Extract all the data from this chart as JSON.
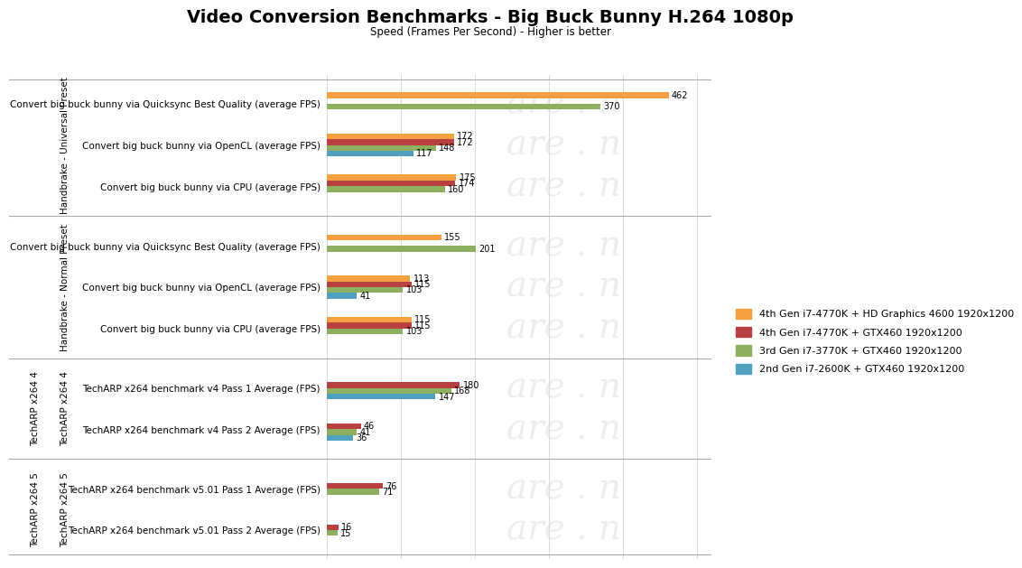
{
  "title": "Video Conversion Benchmarks - Big Buck Bunny H.264 1080p",
  "subtitle": "Speed (Frames Per Second) - Higher is better",
  "colors": {
    "orange": "#F5A040",
    "red": "#B84040",
    "green": "#8DB060",
    "blue": "#50A0C0"
  },
  "legend_labels": [
    "4th Gen i7-4770K + HD Graphics 4600 1920x1200",
    "4th Gen i7-4770K + GTX460 1920x1200",
    "3rd Gen i7-3770K + GTX460 1920x1200",
    "2nd Gen i7-2600K + GTX460 1920x1200"
  ],
  "groups": [
    {
      "group_label": "Handbrake - Universal Preset",
      "bars": [
        {
          "label": "Convert big buck bunny via Quicksync Best Quality (average FPS)",
          "values": [
            462,
            null,
            370,
            null
          ]
        },
        {
          "label": "Convert big buck bunny via OpenCL (average FPS)",
          "values": [
            172,
            172,
            148,
            117
          ]
        },
        {
          "label": "Convert big buck bunny via CPU (average FPS)",
          "values": [
            175,
            174,
            160,
            null
          ]
        }
      ]
    },
    {
      "group_label": "Handbrake - Normal Preset",
      "bars": [
        {
          "label": "Convert big buck bunny via Quicksync Best Quality (average FPS)",
          "values": [
            155,
            null,
            201,
            null
          ]
        },
        {
          "label": "Convert big buck bunny via OpenCL (average FPS)",
          "values": [
            113,
            115,
            103,
            41
          ]
        },
        {
          "label": "Convert big buck bunny via CPU (average FPS)",
          "values": [
            115,
            115,
            103,
            null
          ]
        }
      ]
    },
    {
      "group_label": "TechARP x264 4",
      "bars": [
        {
          "label": "TechARP x264 benchmark v4 Pass 1 Average (FPS)",
          "values": [
            null,
            180,
            168,
            147
          ]
        },
        {
          "label": "TechARP x264 benchmark v4 Pass 2 Average (FPS)",
          "values": [
            null,
            46,
            41,
            36
          ]
        }
      ]
    },
    {
      "group_label": "TechARP x264 5",
      "bars": [
        {
          "label": "TechARP x264 benchmark v5.01 Pass 1 Average (FPS)",
          "values": [
            null,
            76,
            71,
            null
          ]
        },
        {
          "label": "TechARP x264 benchmark v5.01 Pass 2 Average (FPS)",
          "values": [
            null,
            16,
            15,
            null
          ]
        }
      ]
    }
  ],
  "group_labels_rotated": [
    "Handbrake - Universal Preset",
    "Handbrake - Normal Preset",
    "TechARP x264 4",
    "TechARP x264 5"
  ],
  "xlim": [
    0,
    520
  ],
  "background_color": "#FFFFFF",
  "grid_color": "#CCCCCC",
  "separator_color": "#AAAAAA",
  "watermark_color": "#DDDDDD"
}
